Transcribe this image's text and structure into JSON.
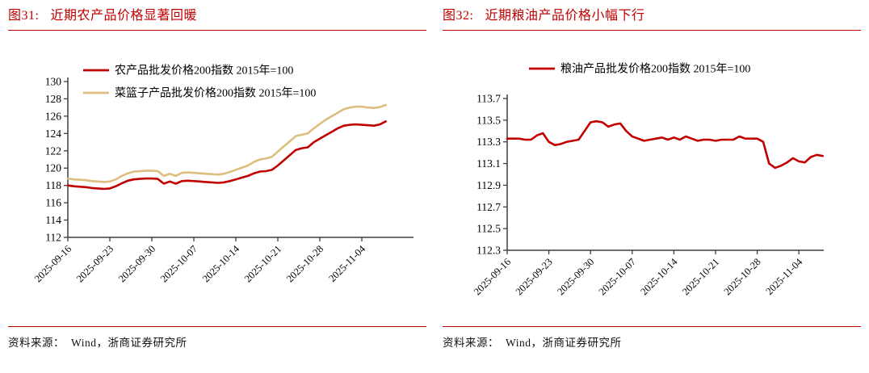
{
  "page": {
    "accent_color": "#c00000",
    "axis_color": "#3f3f3f"
  },
  "panels": [
    {
      "title_prefix": "图31:",
      "title_text": "近期农产品价格显著回暖",
      "source_label": "资料来源：",
      "source_text": "Wind，浙商证券研究所"
    },
    {
      "title_prefix": "图32:",
      "title_text": "近期粮油产品价格小幅下行",
      "source_label": "资料来源：",
      "source_text": "Wind，浙商证券研究所"
    }
  ],
  "chart_data": [
    {
      "type": "line",
      "title": "近期农产品价格显著回暖",
      "xlabel": "",
      "ylabel": "",
      "ylim": [
        112,
        130
      ],
      "ytick_step": 2,
      "y_decimals": 0,
      "grid": false,
      "legend_position": "top-stacked",
      "xticks": [
        "2025-09-16",
        "2025-09-23",
        "2025-09-30",
        "2025-10-07",
        "2025-10-14",
        "2025-10-21",
        "2025-10-28",
        "2025-11-04"
      ],
      "x": [
        "2025-09-16",
        "2025-09-17",
        "2025-09-18",
        "2025-09-19",
        "2025-09-20",
        "2025-09-21",
        "2025-09-22",
        "2025-09-23",
        "2025-09-24",
        "2025-09-25",
        "2025-09-26",
        "2025-09-27",
        "2025-09-28",
        "2025-09-29",
        "2025-09-30",
        "2025-10-01",
        "2025-10-02",
        "2025-10-03",
        "2025-10-04",
        "2025-10-05",
        "2025-10-06",
        "2025-10-07",
        "2025-10-08",
        "2025-10-09",
        "2025-10-10",
        "2025-10-11",
        "2025-10-12",
        "2025-10-13",
        "2025-10-14",
        "2025-10-15",
        "2025-10-16",
        "2025-10-17",
        "2025-10-18",
        "2025-10-19",
        "2025-10-20",
        "2025-10-21",
        "2025-10-22",
        "2025-10-23",
        "2025-10-24",
        "2025-10-25",
        "2025-10-26",
        "2025-10-27",
        "2025-10-28",
        "2025-10-29",
        "2025-10-30",
        "2025-10-31",
        "2025-11-01",
        "2025-11-02",
        "2025-11-03",
        "2025-11-04",
        "2025-11-05",
        "2025-11-06",
        "2025-11-07",
        "2025-11-08"
      ],
      "series": [
        {
          "name": "农产品批发价格200指数 2015年=100",
          "color": "#c00000",
          "values": [
            118.0,
            117.9,
            117.85,
            117.8,
            117.7,
            117.65,
            117.6,
            117.65,
            117.9,
            118.25,
            118.55,
            118.7,
            118.75,
            118.8,
            118.8,
            118.75,
            118.2,
            118.45,
            118.2,
            118.5,
            118.55,
            118.5,
            118.45,
            118.4,
            118.35,
            118.3,
            118.35,
            118.5,
            118.7,
            118.9,
            119.1,
            119.4,
            119.6,
            119.65,
            119.8,
            120.3,
            120.9,
            121.5,
            122.1,
            122.3,
            122.4,
            123.0,
            123.4,
            123.8,
            124.2,
            124.6,
            124.9,
            125.0,
            125.05,
            125.0,
            124.95,
            124.9,
            125.05,
            125.4
          ]
        },
        {
          "name": "菜篮子产品批发价格200指数 2015年=100",
          "color": "#ddbe7e",
          "values": [
            118.8,
            118.7,
            118.65,
            118.6,
            118.5,
            118.45,
            118.4,
            118.45,
            118.7,
            119.1,
            119.4,
            119.6,
            119.65,
            119.7,
            119.7,
            119.65,
            119.1,
            119.35,
            119.1,
            119.45,
            119.5,
            119.45,
            119.4,
            119.35,
            119.3,
            119.25,
            119.35,
            119.55,
            119.8,
            120.05,
            120.3,
            120.7,
            121.0,
            121.1,
            121.3,
            121.9,
            122.5,
            123.1,
            123.7,
            123.85,
            124.0,
            124.6,
            125.1,
            125.6,
            126.0,
            126.4,
            126.8,
            127.0,
            127.1,
            127.1,
            127.0,
            126.95,
            127.05,
            127.3
          ]
        }
      ]
    },
    {
      "type": "line",
      "title": "近期粮油产品价格小幅下行",
      "xlabel": "",
      "ylabel": "",
      "ylim": [
        112.3,
        113.7
      ],
      "ytick_step": 0.2,
      "y_decimals": 1,
      "grid": false,
      "legend_position": "top",
      "xticks": [
        "2025-09-16",
        "2025-09-23",
        "2025-09-30",
        "2025-10-07",
        "2025-10-14",
        "2025-10-21",
        "2025-10-28",
        "2025-11-04"
      ],
      "x": [
        "2025-09-16",
        "2025-09-17",
        "2025-09-18",
        "2025-09-19",
        "2025-09-20",
        "2025-09-21",
        "2025-09-22",
        "2025-09-23",
        "2025-09-24",
        "2025-09-25",
        "2025-09-26",
        "2025-09-27",
        "2025-09-28",
        "2025-09-29",
        "2025-09-30",
        "2025-10-01",
        "2025-10-02",
        "2025-10-03",
        "2025-10-04",
        "2025-10-05",
        "2025-10-06",
        "2025-10-07",
        "2025-10-08",
        "2025-10-09",
        "2025-10-10",
        "2025-10-11",
        "2025-10-12",
        "2025-10-13",
        "2025-10-14",
        "2025-10-15",
        "2025-10-16",
        "2025-10-17",
        "2025-10-18",
        "2025-10-19",
        "2025-10-20",
        "2025-10-21",
        "2025-10-22",
        "2025-10-23",
        "2025-10-24",
        "2025-10-25",
        "2025-10-26",
        "2025-10-27",
        "2025-10-28",
        "2025-10-29",
        "2025-10-30",
        "2025-10-31",
        "2025-11-01",
        "2025-11-02",
        "2025-11-03",
        "2025-11-04",
        "2025-11-05",
        "2025-11-06",
        "2025-11-07",
        "2025-11-08"
      ],
      "series": [
        {
          "name": "粮油产品批发价格200指数 2015年=100",
          "color": "#c00000",
          "values": [
            113.33,
            113.33,
            113.33,
            113.32,
            113.32,
            113.36,
            113.38,
            113.3,
            113.27,
            113.28,
            113.3,
            113.31,
            113.32,
            113.4,
            113.48,
            113.49,
            113.48,
            113.44,
            113.46,
            113.47,
            113.4,
            113.35,
            113.33,
            113.31,
            113.32,
            113.33,
            113.34,
            113.32,
            113.34,
            113.32,
            113.35,
            113.33,
            113.31,
            113.32,
            113.32,
            113.31,
            113.32,
            113.32,
            113.32,
            113.35,
            113.33,
            113.33,
            113.33,
            113.3,
            113.1,
            113.06,
            113.08,
            113.11,
            113.15,
            113.12,
            113.11,
            113.16,
            113.18,
            113.17
          ]
        }
      ]
    }
  ]
}
